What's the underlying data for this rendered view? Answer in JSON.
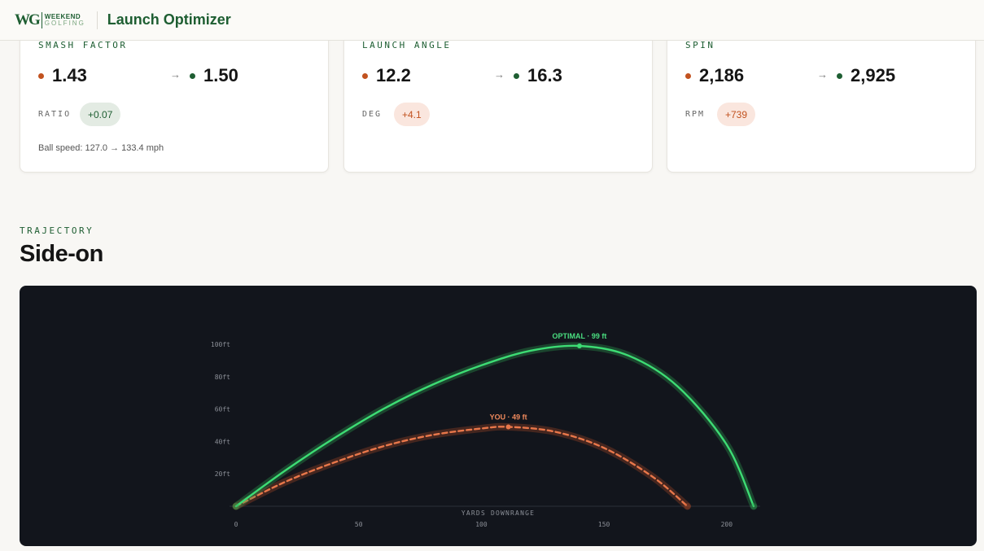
{
  "header": {
    "logo_mark": "WG",
    "logo_line1": "WEEKEND",
    "logo_line2": "GOLFING",
    "title": "Launch Optimizer"
  },
  "metrics": [
    {
      "label": "SMASH FACTOR",
      "you": "1.43",
      "optimal": "1.50",
      "unit": "RATIO",
      "delta": "+0.07",
      "delta_tone": "green",
      "note": "Ball speed: 127.0 → 133.4 mph"
    },
    {
      "label": "LAUNCH ANGLE",
      "you": "12.2",
      "optimal": "16.3",
      "unit": "DEG",
      "delta": "+4.1",
      "delta_tone": "red",
      "note": ""
    },
    {
      "label": "SPIN",
      "you": "2,186",
      "optimal": "2,925",
      "unit": "RPM",
      "delta": "+739",
      "delta_tone": "red",
      "note": ""
    }
  ],
  "arrow_glyph": "→",
  "colors": {
    "you": "#c2521f",
    "optimal": "#1e5e32",
    "optimal_line": "#3ddc74",
    "you_line": "#e8774a"
  },
  "trajectory": {
    "eyebrow": "TRAJECTORY",
    "title": "Side-on"
  },
  "chart_data": {
    "type": "line",
    "xlabel": "YARDS DOWNRANGE",
    "ylabel": "",
    "xlim": [
      0,
      220
    ],
    "ylim": [
      0,
      100
    ],
    "x_ticks": [
      "0",
      "50",
      "100",
      "150",
      "200"
    ],
    "y_ticks": [
      "20ft",
      "40ft",
      "60ft",
      "80ft",
      "100ft"
    ],
    "series": [
      {
        "name": "OPTIMAL",
        "apex_label": "OPTIMAL · 99 ft",
        "apex_x": 140,
        "apex_y": 99,
        "carry": 211,
        "x": [
          0,
          20,
          40,
          60,
          80,
          100,
          120,
          140,
          160,
          180,
          200,
          211
        ],
        "y": [
          0,
          22,
          42,
          60,
          75,
          87,
          96,
          99,
          93,
          74,
          38,
          0
        ]
      },
      {
        "name": "YOU",
        "apex_label": "YOU · 49 ft",
        "apex_x": 111,
        "apex_y": 49,
        "carry": 184,
        "x": [
          0,
          20,
          40,
          60,
          80,
          100,
          111,
          130,
          150,
          170,
          184
        ],
        "y": [
          0,
          15,
          27,
          37,
          44,
          48,
          49,
          46,
          36,
          18,
          0
        ]
      }
    ]
  }
}
